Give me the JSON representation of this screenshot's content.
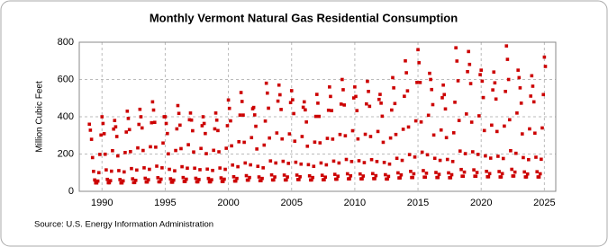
{
  "chart_data": {
    "type": "scatter",
    "title": "Monthly Vermont Natural Gas Residential Consumption",
    "y_label": "Million Cubic Feet",
    "source": "Source: U.S. Energy Information Administration",
    "color": "#cc0000",
    "grid": true,
    "xlim": [
      1988.2,
      2025.9
    ],
    "ylim": [
      0,
      800
    ],
    "xticks": [
      1990,
      1995,
      2000,
      2005,
      2010,
      2015,
      2020,
      2025
    ],
    "yticks": [
      0,
      200,
      400,
      600,
      800
    ],
    "x": [
      1989,
      1989.08,
      1989.17,
      1989.25,
      1989.33,
      1989.42,
      1989.5,
      1989.58,
      1989.67,
      1989.75,
      1989.83,
      1989.92,
      1990,
      1990.08,
      1990.17,
      1990.25,
      1990.33,
      1990.42,
      1990.5,
      1990.58,
      1990.67,
      1990.75,
      1990.83,
      1990.92,
      1991,
      1991.08,
      1991.17,
      1991.25,
      1991.33,
      1991.42,
      1991.5,
      1991.58,
      1991.67,
      1991.75,
      1991.83,
      1991.92,
      1992,
      1992.08,
      1992.17,
      1992.25,
      1992.33,
      1992.42,
      1992.5,
      1992.58,
      1992.67,
      1992.75,
      1992.83,
      1992.92,
      1993,
      1993.08,
      1993.17,
      1993.25,
      1993.33,
      1993.42,
      1993.5,
      1993.58,
      1993.67,
      1993.75,
      1993.83,
      1993.92,
      1994,
      1994.08,
      1994.17,
      1994.25,
      1994.33,
      1994.42,
      1994.5,
      1994.58,
      1994.67,
      1994.75,
      1994.83,
      1994.92,
      1995,
      1995.08,
      1995.17,
      1995.25,
      1995.33,
      1995.42,
      1995.5,
      1995.58,
      1995.67,
      1995.75,
      1995.83,
      1995.92,
      1996,
      1996.08,
      1996.17,
      1996.25,
      1996.33,
      1996.42,
      1996.5,
      1996.58,
      1996.67,
      1996.75,
      1996.83,
      1996.92,
      1997,
      1997.08,
      1997.17,
      1997.25,
      1997.33,
      1997.42,
      1997.5,
      1997.58,
      1997.67,
      1997.75,
      1997.83,
      1997.92,
      1998,
      1998.08,
      1998.17,
      1998.25,
      1998.33,
      1998.42,
      1998.5,
      1998.58,
      1998.67,
      1998.75,
      1998.83,
      1998.92,
      1999,
      1999.08,
      1999.17,
      1999.25,
      1999.33,
      1999.42,
      1999.5,
      1999.58,
      1999.67,
      1999.75,
      1999.83,
      1999.92,
      2000,
      2000.08,
      2000.17,
      2000.25,
      2000.33,
      2000.42,
      2000.5,
      2000.58,
      2000.67,
      2000.75,
      2000.83,
      2000.92,
      2001,
      2001.08,
      2001.17,
      2001.25,
      2001.33,
      2001.42,
      2001.5,
      2001.58,
      2001.67,
      2001.75,
      2001.83,
      2001.92,
      2002,
      2002.08,
      2002.17,
      2002.25,
      2002.33,
      2002.42,
      2002.5,
      2002.58,
      2002.67,
      2002.75,
      2002.83,
      2002.92,
      2003,
      2003.08,
      2003.17,
      2003.25,
      2003.33,
      2003.42,
      2003.5,
      2003.58,
      2003.67,
      2003.75,
      2003.83,
      2003.92,
      2004,
      2004.08,
      2004.17,
      2004.25,
      2004.33,
      2004.42,
      2004.5,
      2004.58,
      2004.67,
      2004.75,
      2004.83,
      2004.92,
      2005,
      2005.08,
      2005.17,
      2005.25,
      2005.33,
      2005.42,
      2005.5,
      2005.58,
      2005.67,
      2005.75,
      2005.83,
      2005.92,
      2006,
      2006.08,
      2006.17,
      2006.25,
      2006.33,
      2006.42,
      2006.5,
      2006.58,
      2006.67,
      2006.75,
      2006.83,
      2006.92,
      2007,
      2007.08,
      2007.17,
      2007.25,
      2007.33,
      2007.42,
      2007.5,
      2007.58,
      2007.67,
      2007.75,
      2007.83,
      2007.92,
      2008,
      2008.08,
      2008.17,
      2008.25,
      2008.33,
      2008.42,
      2008.5,
      2008.58,
      2008.67,
      2008.75,
      2008.83,
      2008.92,
      2009,
      2009.08,
      2009.17,
      2009.25,
      2009.33,
      2009.42,
      2009.5,
      2009.58,
      2009.67,
      2009.75,
      2009.83,
      2009.92,
      2010,
      2010.08,
      2010.17,
      2010.25,
      2010.33,
      2010.42,
      2010.5,
      2010.58,
      2010.67,
      2010.75,
      2010.83,
      2010.92,
      2011,
      2011.08,
      2011.17,
      2011.25,
      2011.33,
      2011.42,
      2011.5,
      2011.58,
      2011.67,
      2011.75,
      2011.83,
      2011.92,
      2012,
      2012.08,
      2012.17,
      2012.25,
      2012.33,
      2012.42,
      2012.5,
      2012.58,
      2012.67,
      2012.75,
      2012.83,
      2012.92,
      2013,
      2013.08,
      2013.17,
      2013.25,
      2013.33,
      2013.42,
      2013.5,
      2013.58,
      2013.67,
      2013.75,
      2013.83,
      2013.92,
      2014,
      2014.08,
      2014.17,
      2014.25,
      2014.33,
      2014.42,
      2014.5,
      2014.58,
      2014.67,
      2014.75,
      2014.83,
      2014.92,
      2015,
      2015.08,
      2015.17,
      2015.25,
      2015.33,
      2015.42,
      2015.5,
      2015.58,
      2015.67,
      2015.75,
      2015.83,
      2015.92,
      2016,
      2016.08,
      2016.17,
      2016.25,
      2016.33,
      2016.42,
      2016.5,
      2016.58,
      2016.67,
      2016.75,
      2016.83,
      2016.92,
      2017,
      2017.08,
      2017.17,
      2017.25,
      2017.33,
      2017.42,
      2017.5,
      2017.58,
      2017.67,
      2017.75,
      2017.83,
      2017.92,
      2018,
      2018.08,
      2018.17,
      2018.25,
      2018.33,
      2018.42,
      2018.5,
      2018.58,
      2018.67,
      2018.75,
      2018.83,
      2018.92,
      2019,
      2019.08,
      2019.17,
      2019.25,
      2019.33,
      2019.42,
      2019.5,
      2019.58,
      2019.67,
      2019.75,
      2019.83,
      2019.92,
      2020,
      2020.08,
      2020.17,
      2020.25,
      2020.33,
      2020.42,
      2020.5,
      2020.58,
      2020.67,
      2020.75,
      2020.83,
      2020.92,
      2021,
      2021.08,
      2021.17,
      2021.25,
      2021.33,
      2021.42,
      2021.5,
      2021.58,
      2021.67,
      2021.75,
      2021.83,
      2021.92,
      2022,
      2022.08,
      2022.17,
      2022.25,
      2022.33,
      2022.42,
      2022.5,
      2022.58,
      2022.67,
      2022.75,
      2022.83,
      2022.92,
      2023,
      2023.08,
      2023.17,
      2023.25,
      2023.33,
      2023.42,
      2023.5,
      2023.58,
      2023.67,
      2023.75,
      2023.83,
      2023.92,
      2024,
      2024.08,
      2024.17,
      2024.25,
      2024.33,
      2024.42,
      2024.5,
      2024.58,
      2024.67,
      2024.75,
      2024.83,
      2024.92,
      2025,
      2025.08
    ],
    "values": [
      360,
      328,
      279,
      181,
      107,
      61,
      45,
      45,
      55,
      100,
      198,
      302,
      400,
      364,
      309,
      199,
      115,
      64,
      46,
      46,
      57,
      108,
      218,
      334,
      380,
      346,
      294,
      190,
      111,
      63,
      45,
      45,
      56,
      104,
      208,
      318,
      430,
      391,
      331,
      213,
      122,
      67,
      47,
      47,
      59,
      114,
      233,
      359,
      440,
      400,
      340,
      219,
      126,
      70,
      50,
      50,
      62,
      118,
      239,
      368,
      480,
      436,
      370,
      237,
      135,
      73,
      51,
      51,
      65,
      126,
      259,
      400,
      400,
      364,
      310,
      201,
      118,
      67,
      49,
      49,
      60,
      110,
      219,
      335,
      460,
      418,
      355,
      229,
      132,
      74,
      53,
      53,
      65,
      124,
      250,
      384,
      420,
      382,
      325,
      211,
      124,
      70,
      51,
      51,
      63,
      116,
      230,
      352,
      400,
      364,
      310,
      202,
      119,
      69,
      51,
      51,
      62,
      112,
      220,
      335,
      420,
      382,
      326,
      212,
      125,
      72,
      53,
      53,
      65,
      118,
      231,
      352,
      490,
      445,
      378,
      244,
      141,
      78,
      55,
      55,
      69,
      132,
      266,
      409,
      530,
      482,
      409,
      263,
      152,
      84,
      60,
      60,
      74,
      142,
      288,
      443,
      450,
      410,
      349,
      227,
      134,
      77,
      57,
      57,
      69,
      126,
      248,
      377,
      580,
      527,
      446,
      286,
      163,
      88,
      61,
      61,
      77,
      152,
      313,
      484,
      570,
      518,
      439,
      281,
      161,
      87,
      61,
      61,
      77,
      150,
      308,
      476,
      540,
      491,
      417,
      269,
      156,
      87,
      63,
      63,
      78,
      146,
      294,
      451,
      480,
      437,
      372,
      242,
      143,
      83,
      61,
      61,
      74,
      134,
      264,
      402,
      520,
      473,
      402,
      260,
      152,
      86,
      62,
      62,
      76,
      142,
      284,
      435,
      560,
      509,
      433,
      280,
      162,
      91,
      65,
      65,
      81,
      152,
      305,
      468,
      600,
      545,
      463,
      298,
      171,
      94,
      67,
      67,
      83,
      160,
      325,
      501,
      560,
      509,
      433,
      281,
      164,
      93,
      67,
      67,
      82,
      154,
      306,
      469,
      590,
      536,
      456,
      294,
      170,
      95,
      68,
      68,
      84,
      160,
      321,
      493,
      520,
      473,
      403,
      263,
      155,
      89,
      66,
      66,
      80,
      146,
      286,
      436,
      610,
      555,
      471,
      305,
      177,
      99,
      72,
      72,
      88,
      166,
      333,
      510,
      700,
      636,
      539,
      345,
      197,
      107,
      74,
      74,
      94,
      184,
      378,
      584,
      760,
      690,
      584,
      372,
      210,
      111,
      76,
      76,
      97,
      196,
      408,
      633,
      600,
      546,
      465,
      302,
      177,
      101,
      74,
      74,
      91,
      166,
      329,
      502,
      570,
      519,
      442,
      288,
      171,
      99,
      73,
      73,
      89,
      160,
      314,
      478,
      770,
      699,
      593,
      380,
      216,
      117,
      81,
      81,
      103,
      202,
      415,
      642,
      750,
      681,
      578,
      371,
      212,
      115,
      81,
      81,
      101,
      198,
      405,
      626,
      650,
      591,
      503,
      326,
      190,
      107,
      78,
      78,
      95,
      178,
      355,
      544,
      640,
      582,
      495,
      321,
      188,
      106,
      77,
      77,
      95,
      176,
      350,
      536,
      780,
      708,
      600,
      384,
      218,
      118,
      82,
      82,
      103,
      204,
      420,
      650,
      610,
      555,
      473,
      308,
      181,
      104,
      77,
      77,
      93,
      170,
      335,
      511,
      620,
      564,
      480,
      312,
      183,
      105,
      77,
      77,
      94,
      172,
      340,
      519,
      720,
      670
    ]
  }
}
